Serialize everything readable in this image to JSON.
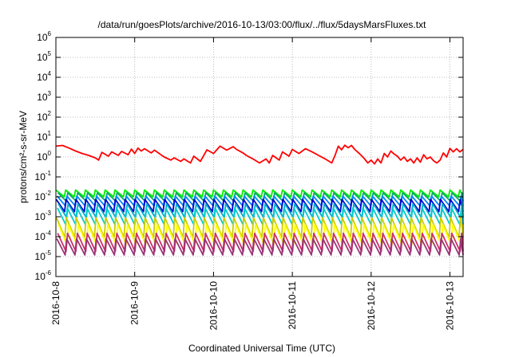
{
  "chart_data": {
    "type": "line",
    "title": "/data/run/goesPlots/archive/2016-10-13/03:00/flux/../flux/5daysMarsFluxes.txt",
    "xlabel": "Coordinated Universal Time (UTC)",
    "ylabel": "protons/cm²-s-sr-MeV",
    "y_scale": "log",
    "ylim": [
      "1e-6",
      "1e6"
    ],
    "xlim": [
      "2016-10-08",
      "2016-10-13 04:00"
    ],
    "grid": true,
    "legend": "none",
    "x_ticks": [
      "2016-10-8",
      "2016-10-9",
      "2016-10-10",
      "2016-10-11",
      "2016-10-12",
      "2016-10-13"
    ],
    "y_tick_exponents": [
      "-6",
      "-5",
      "-4",
      "-3",
      "-2",
      "-1",
      "0",
      "1",
      "2",
      "3",
      "4",
      "5",
      "6"
    ],
    "series": [
      {
        "color": "#ff0000",
        "x": [
          "2016-10-08 00:00",
          "2016-10-08 02:00",
          "2016-10-08 04:00",
          "2016-10-08 06:00",
          "2016-10-08 08:00",
          "2016-10-08 10:00",
          "2016-10-08 12:00",
          "2016-10-08 13:00",
          "2016-10-08 14:00",
          "2016-10-08 16:00",
          "2016-10-08 17:00",
          "2016-10-08 19:00",
          "2016-10-08 20:00",
          "2016-10-08 22:00",
          "2016-10-08 23:00",
          "2016-10-09 00:00",
          "2016-10-09 01:00",
          "2016-10-09 02:00",
          "2016-10-09 03:00",
          "2016-10-09 05:00",
          "2016-10-09 06:00",
          "2016-10-09 08:00",
          "2016-10-09 09:00",
          "2016-10-09 11:00",
          "2016-10-09 12:00",
          "2016-10-09 14:00",
          "2016-10-09 15:00",
          "2016-10-09 17:00",
          "2016-10-09 18:00",
          "2016-10-09 20:00",
          "2016-10-09 22:00",
          "2016-10-10 00:00",
          "2016-10-10 02:00",
          "2016-10-10 04:00",
          "2016-10-10 06:00",
          "2016-10-10 07:00",
          "2016-10-10 09:00",
          "2016-10-10 10:00",
          "2016-10-10 12:00",
          "2016-10-10 14:00",
          "2016-10-10 16:00",
          "2016-10-10 17:00",
          "2016-10-10 18:00",
          "2016-10-10 20:00",
          "2016-10-10 21:00",
          "2016-10-10 23:00",
          "2016-10-11 00:00",
          "2016-10-11 02:00",
          "2016-10-11 04:00",
          "2016-10-11 06:00",
          "2016-10-11 08:00",
          "2016-10-11 10:00",
          "2016-10-11 12:00",
          "2016-10-11 13:00",
          "2016-10-11 14:00",
          "2016-10-11 15:00",
          "2016-10-11 16:00",
          "2016-10-11 17:00",
          "2016-10-11 18:00",
          "2016-10-11 19:00",
          "2016-10-11 20:00",
          "2016-10-11 21:00",
          "2016-10-11 22:00",
          "2016-10-11 23:00",
          "2016-10-12 00:00",
          "2016-10-12 01:00",
          "2016-10-12 02:00",
          "2016-10-12 03:00",
          "2016-10-12 04:00",
          "2016-10-12 05:00",
          "2016-10-12 06:00",
          "2016-10-12 07:00",
          "2016-10-12 08:00",
          "2016-10-12 09:00",
          "2016-10-12 10:00",
          "2016-10-12 11:00",
          "2016-10-12 12:00",
          "2016-10-12 13:00",
          "2016-10-12 14:00",
          "2016-10-12 15:00",
          "2016-10-12 16:00",
          "2016-10-12 17:00",
          "2016-10-12 18:00",
          "2016-10-12 19:00",
          "2016-10-12 20:00",
          "2016-10-12 21:00",
          "2016-10-12 22:00",
          "2016-10-12 23:00",
          "2016-10-13 00:00",
          "2016-10-13 01:00",
          "2016-10-13 02:00",
          "2016-10-13 03:00",
          "2016-10-13 04:00"
        ],
        "y": [
          3.5,
          3.8,
          2.8,
          2.0,
          1.5,
          1.2,
          0.9,
          0.7,
          1.7,
          1.1,
          1.8,
          1.2,
          1.9,
          1.3,
          2.5,
          1.5,
          2.8,
          2.0,
          2.6,
          1.6,
          2.2,
          1.3,
          1.0,
          0.7,
          0.9,
          0.6,
          0.8,
          0.5,
          1.1,
          0.6,
          2.3,
          1.5,
          3.5,
          2.2,
          3.3,
          2.4,
          1.6,
          1.2,
          0.8,
          0.5,
          0.8,
          0.5,
          1.2,
          0.7,
          1.8,
          1.1,
          2.4,
          1.5,
          2.6,
          1.8,
          1.2,
          0.8,
          0.5,
          1.2,
          3.5,
          2.3,
          3.9,
          2.9,
          3.8,
          2.4,
          1.7,
          1.2,
          0.8,
          0.5,
          0.7,
          0.45,
          0.8,
          0.5,
          1.5,
          1.0,
          2.0,
          1.4,
          1.1,
          0.7,
          1.0,
          0.6,
          0.8,
          0.5,
          0.9,
          0.55,
          1.3,
          0.8,
          1.0,
          0.65,
          0.5,
          0.7,
          1.6,
          1.0,
          2.7,
          1.8,
          2.6,
          1.8,
          2.4
        ]
      }
    ],
    "sawtooth_series": [
      {
        "color": "#00ee00",
        "peak": 0.022,
        "trough": 0.01
      },
      {
        "color": "#00aa66",
        "peak": 0.016,
        "trough": 0.006
      },
      {
        "color": "#0088ff",
        "peak": 0.011,
        "trough": 0.0035
      },
      {
        "color": "#0000cc",
        "peak": 0.0075,
        "trough": 0.0018
      },
      {
        "color": "#00aacc",
        "peak": 0.0045,
        "trough": 0.0009
      },
      {
        "color": "#00cccc",
        "peak": 0.0028,
        "trough": 0.0004
      },
      {
        "color": "#cccc00",
        "peak": 0.0009,
        "trough": 9e-05
      },
      {
        "color": "#ffff00",
        "peak": 0.0004,
        "trough": 4e-05
      },
      {
        "color": "#cc3366",
        "peak": 0.00015,
        "trough": 1.8e-05
      },
      {
        "color": "#993377",
        "peak": 8e-05,
        "trough": 1.2e-05
      }
    ],
    "sawtooth_peaks_per_day": 8
  }
}
